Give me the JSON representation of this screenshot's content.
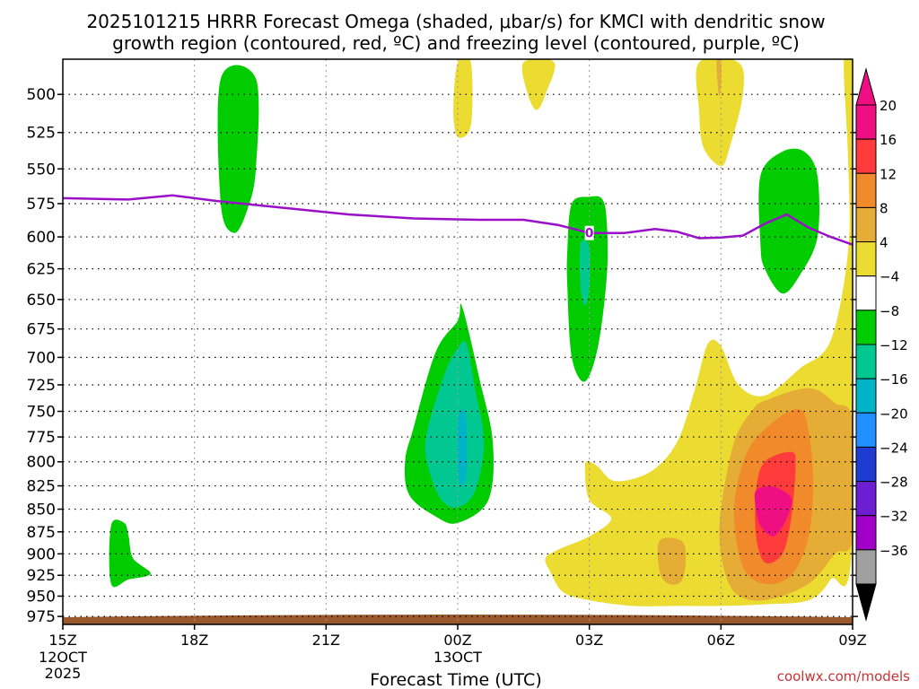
{
  "chart_data": {
    "type": "heatmap",
    "title_line1": "2025101215 HRRR Forecast Omega (shaded, μbar/s) for KMCI with dendritic snow",
    "title_line2": "growth region (contoured, red, ºC) and freezing level (contoured, purple, ºC)",
    "xlabel": "Forecast Time (UTC)",
    "credit": "coolwx.com/models",
    "x_range_hours": [
      0,
      18
    ],
    "y_range_hpa": [
      478,
      985
    ],
    "x_ticks": [
      {
        "hour": 0,
        "label": "15Z",
        "sub1": "12OCT",
        "sub2": "2025"
      },
      {
        "hour": 3,
        "label": "18Z"
      },
      {
        "hour": 6,
        "label": "21Z"
      },
      {
        "hour": 9,
        "label": "00Z",
        "sub1": "13OCT"
      },
      {
        "hour": 12,
        "label": "03Z"
      },
      {
        "hour": 15,
        "label": "06Z"
      },
      {
        "hour": 18,
        "label": "09Z"
      }
    ],
    "y_ticks": [
      500,
      525,
      550,
      575,
      600,
      625,
      650,
      675,
      700,
      725,
      750,
      775,
      800,
      825,
      850,
      875,
      900,
      925,
      950,
      975
    ],
    "colorbar": {
      "labels": [
        "20",
        "16",
        "12",
        "8",
        "4",
        "−4",
        "−8",
        "−12",
        "−16",
        "−20",
        "−24",
        "−28",
        "−32",
        "−36"
      ],
      "colors": [
        "#ee0f82",
        "#ff3b3b",
        "#f08a2a",
        "#e5ad35",
        "#ecdc32",
        "#ffffff",
        "#00cc00",
        "#00c890",
        "#00b4c8",
        "#1e90ff",
        "#1e3cd2",
        "#6e1ed2",
        "#a000c8",
        "#a0a0a0"
      ],
      "top_arrow_color": "#ee0f82",
      "bottom_arrow_color": "#000000"
    },
    "freezing_level": {
      "label": "0",
      "label_hour": 12,
      "points": [
        [
          0,
          571
        ],
        [
          1.5,
          572
        ],
        [
          2.5,
          569
        ],
        [
          3.5,
          573
        ],
        [
          5,
          578
        ],
        [
          6.5,
          583
        ],
        [
          8,
          586
        ],
        [
          9.5,
          587
        ],
        [
          10.5,
          587
        ],
        [
          11.3,
          591
        ],
        [
          12,
          597
        ],
        [
          12.8,
          597
        ],
        [
          13.5,
          594
        ],
        [
          14,
          596
        ],
        [
          14.5,
          601
        ],
        [
          15,
          600.5
        ],
        [
          15.5,
          599
        ],
        [
          16,
          590
        ],
        [
          16.5,
          583
        ],
        [
          17,
          593
        ],
        [
          17.5,
          600
        ],
        [
          18,
          606
        ]
      ]
    },
    "omega_regions": [
      {
        "value": -6,
        "label": "green",
        "points": [
          [
            3.6,
            490
          ],
          [
            4.4,
            490
          ],
          [
            4.4,
            550
          ],
          [
            4.2,
            580
          ],
          [
            3.9,
            597
          ],
          [
            3.6,
            575
          ]
        ]
      },
      {
        "value": -6,
        "label": "green",
        "points": [
          [
            14.6,
            485
          ],
          [
            14.7,
            485
          ]
        ]
      },
      {
        "value": 6,
        "label": "yellow",
        "points": [
          [
            9.0,
            480
          ],
          [
            9.3,
            480
          ],
          [
            9.3,
            520
          ],
          [
            9.0,
            528
          ],
          [
            8.9,
            510
          ]
        ]
      },
      {
        "value": 6,
        "label": "yellow",
        "points": [
          [
            10.5,
            480
          ],
          [
            11.2,
            480
          ],
          [
            11.0,
            500
          ],
          [
            10.8,
            510
          ],
          [
            10.6,
            500
          ]
        ]
      },
      {
        "value": 6,
        "label": "yellow",
        "points": [
          [
            14.5,
            480
          ],
          [
            15.4,
            480
          ],
          [
            15.5,
            500
          ],
          [
            15.2,
            535
          ],
          [
            15.0,
            548
          ],
          [
            14.6,
            535
          ],
          [
            14.5,
            510
          ]
        ]
      },
      {
        "value": 10,
        "label": "orange",
        "points": [
          [
            14.9,
            480
          ],
          [
            15.0,
            480
          ],
          [
            15.0,
            495
          ],
          [
            14.95,
            500
          ]
        ]
      },
      {
        "value": -6,
        "label": "green",
        "points": [
          [
            11.6,
            575
          ],
          [
            12.0,
            570
          ],
          [
            12.3,
            572
          ],
          [
            12.4,
            590
          ],
          [
            12.4,
            630
          ],
          [
            12.2,
            690
          ],
          [
            11.9,
            722
          ],
          [
            11.6,
            700
          ],
          [
            11.5,
            640
          ],
          [
            11.5,
            610
          ]
        ]
      },
      {
        "value": -10,
        "label": "teal",
        "points": [
          [
            11.8,
            605
          ],
          [
            12.0,
            608
          ],
          [
            12.0,
            640
          ],
          [
            11.9,
            655
          ],
          [
            11.8,
            640
          ]
        ]
      },
      {
        "value": -6,
        "label": "green",
        "points": [
          [
            15.9,
            555
          ],
          [
            16.4,
            538
          ],
          [
            16.9,
            538
          ],
          [
            17.2,
            555
          ],
          [
            17.2,
            600
          ],
          [
            16.8,
            630
          ],
          [
            16.4,
            645
          ],
          [
            16.0,
            625
          ],
          [
            15.9,
            605
          ]
        ]
      },
      {
        "value": -6,
        "label": "green",
        "points": [
          [
            8.0,
            765
          ],
          [
            8.5,
            695
          ],
          [
            9.0,
            668
          ],
          [
            9.1,
            656
          ],
          [
            9.5,
            720
          ],
          [
            9.8,
            780
          ],
          [
            9.7,
            840
          ],
          [
            9.0,
            865
          ],
          [
            8.5,
            858
          ],
          [
            7.9,
            835
          ],
          [
            7.8,
            800
          ]
        ]
      },
      {
        "value": -10,
        "label": "teal",
        "points": [
          [
            8.3,
            770
          ],
          [
            8.7,
            715
          ],
          [
            9.0,
            692
          ],
          [
            9.2,
            688
          ],
          [
            9.4,
            730
          ],
          [
            9.6,
            780
          ],
          [
            9.4,
            830
          ],
          [
            9.0,
            848
          ],
          [
            8.6,
            838
          ],
          [
            8.3,
            800
          ]
        ]
      },
      {
        "value": -14,
        "label": "cyan",
        "points": [
          [
            9.0,
            760
          ],
          [
            9.1,
            748
          ],
          [
            9.2,
            760
          ],
          [
            9.2,
            810
          ],
          [
            9.1,
            825
          ],
          [
            9.0,
            810
          ]
        ]
      },
      {
        "value": -6,
        "label": "green",
        "points": [
          [
            1.1,
            868
          ],
          [
            1.4,
            865
          ],
          [
            1.5,
            880
          ],
          [
            1.6,
            905
          ],
          [
            2.0,
            923
          ],
          [
            1.5,
            930
          ],
          [
            1.1,
            935
          ]
        ]
      },
      {
        "value": 6,
        "label": "yellow",
        "points": [
          [
            18.0,
            480
          ],
          [
            18.0,
            880
          ],
          [
            17.5,
            930
          ],
          [
            17.0,
            955
          ],
          [
            16.0,
            960
          ],
          [
            15.0,
            962
          ],
          [
            14.0,
            962
          ],
          [
            13.0,
            962
          ],
          [
            12.0,
            955
          ],
          [
            11.4,
            945
          ],
          [
            11.1,
            920
          ],
          [
            11.0,
            905
          ],
          [
            11.3,
            895
          ],
          [
            12.0,
            880
          ],
          [
            12.5,
            860
          ],
          [
            12.0,
            840
          ],
          [
            11.9,
            805
          ],
          [
            12.0,
            800
          ],
          [
            12.2,
            805
          ],
          [
            12.6,
            820
          ],
          [
            13.4,
            810
          ],
          [
            14.0,
            780
          ],
          [
            14.4,
            730
          ],
          [
            14.7,
            688
          ],
          [
            15.0,
            690
          ],
          [
            15.4,
            725
          ],
          [
            16.0,
            735
          ],
          [
            16.8,
            710
          ],
          [
            17.5,
            685
          ],
          [
            17.9,
            610
          ],
          [
            17.9,
            545
          ],
          [
            17.8,
            480
          ]
        ]
      },
      {
        "value": 10,
        "label": "orange",
        "points": [
          [
            15.0,
            850
          ],
          [
            15.3,
            780
          ],
          [
            15.7,
            750
          ],
          [
            16.0,
            740
          ],
          [
            17.0,
            728
          ],
          [
            17.6,
            742
          ],
          [
            18.0,
            760
          ],
          [
            18.0,
            882
          ],
          [
            17.6,
            900
          ],
          [
            17.0,
            935
          ],
          [
            16.0,
            955
          ],
          [
            15.3,
            945
          ],
          [
            15.0,
            900
          ]
        ]
      },
      {
        "value": 10,
        "label": "orange",
        "points": [
          [
            13.6,
            885
          ],
          [
            14.1,
            885
          ],
          [
            14.2,
            905
          ],
          [
            14.1,
            932
          ],
          [
            13.8,
            935
          ],
          [
            13.6,
            920
          ]
        ]
      },
      {
        "value": 14,
        "label": "darkorange",
        "points": [
          [
            15.3,
            850
          ],
          [
            15.6,
            790
          ],
          [
            16.2,
            760
          ],
          [
            16.8,
            748
          ],
          [
            17.0,
            770
          ],
          [
            17.1,
            820
          ],
          [
            17.0,
            880
          ],
          [
            16.6,
            925
          ],
          [
            16.0,
            935
          ],
          [
            15.5,
            915
          ]
        ]
      },
      {
        "value": 18,
        "label": "red",
        "points": [
          [
            15.8,
            830
          ],
          [
            16.0,
            800
          ],
          [
            16.6,
            790
          ],
          [
            16.7,
            805
          ],
          [
            16.6,
            860
          ],
          [
            16.4,
            900
          ],
          [
            16.0,
            910
          ],
          [
            15.8,
            880
          ]
        ]
      },
      {
        "value": 22,
        "label": "magenta",
        "points": [
          [
            15.8,
            830
          ],
          [
            16.2,
            826
          ],
          [
            16.6,
            838
          ],
          [
            16.5,
            860
          ],
          [
            16.2,
            880
          ],
          [
            15.9,
            868
          ],
          [
            15.8,
            850
          ]
        ]
      }
    ]
  }
}
